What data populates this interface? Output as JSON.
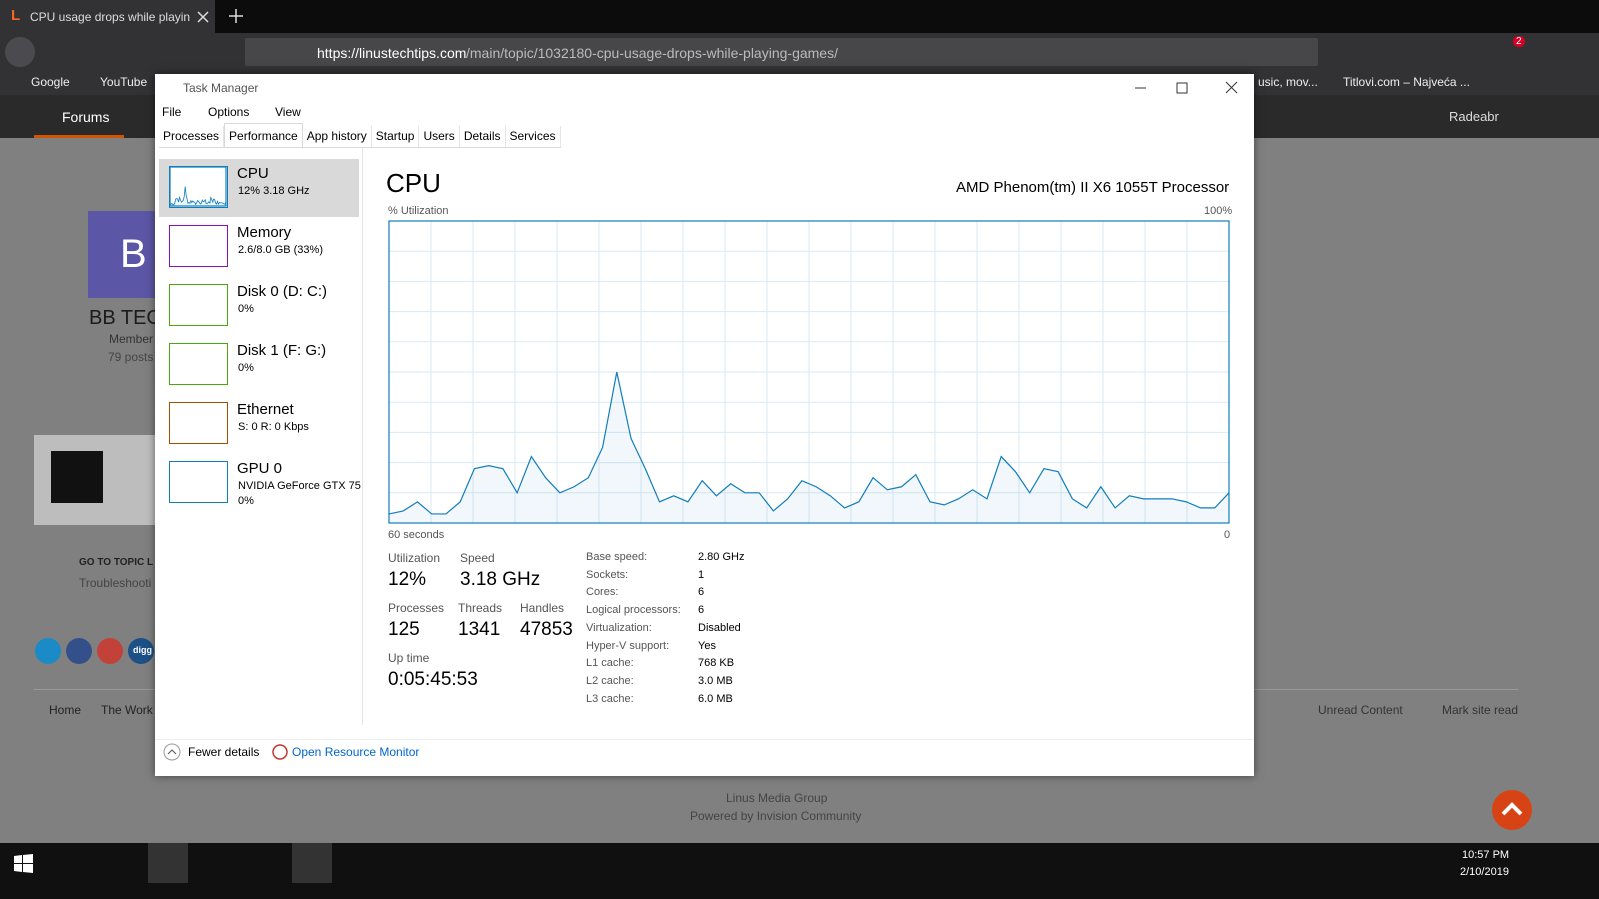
{
  "browser": {
    "tab_title": "CPU usage drops while playing",
    "url_domain": "https://linustechtips.com",
    "url_path": "/main/topic/1032180-cpu-usage-drops-while-playing-games/",
    "extension_badge": "2",
    "bookmarks": [
      "Google",
      "YouTube"
    ],
    "bookmarks_right": [
      "usic, mov...",
      "Titlovi.com – Najveća ..."
    ]
  },
  "site": {
    "nav": "Forums",
    "user": "Radeabr",
    "avatar_letter": "B",
    "author": "BB TEC",
    "role": "Member",
    "posts": "79 posts",
    "go_to_topic": "GO TO TOPIC L",
    "topic_category": "Troubleshooti",
    "social_last": "digg",
    "breadcrumbs": [
      "Home",
      "The Work"
    ],
    "unread": "Unread Content",
    "mark_read": "Mark site read",
    "footer": [
      "Linus Media Group",
      "Powered by Invision Community"
    ]
  },
  "task_manager": {
    "title": "Task Manager",
    "menu": [
      "File",
      "Options",
      "View"
    ],
    "tabs": [
      "Processes",
      "Performance",
      "App history",
      "Startup",
      "Users",
      "Details",
      "Services"
    ],
    "sidebar": [
      {
        "name": "CPU",
        "details": [
          "12% 3.18 GHz"
        ],
        "color": "#117dbb"
      },
      {
        "name": "Memory",
        "details": [
          "2.6/8.0 GB (33%)"
        ],
        "color": "#8b12ae"
      },
      {
        "name": "Disk 0 (D: C:)",
        "details": [
          "0%"
        ],
        "color": "#4da60c"
      },
      {
        "name": "Disk 1 (F: G:)",
        "details": [
          "0%"
        ],
        "color": "#4da60c"
      },
      {
        "name": "Ethernet",
        "details": [
          "S: 0 R: 0 Kbps"
        ],
        "color": "#a74f01"
      },
      {
        "name": "GPU 0",
        "details": [
          "NVIDIA GeForce GTX 75",
          "0%"
        ],
        "color": "#117dbb"
      }
    ],
    "heading": "CPU",
    "processor": "AMD Phenom(tm) II X6 1055T Processor",
    "stats": [
      {
        "label": "Utilization",
        "value": "12%"
      },
      {
        "label": "Speed",
        "value": "3.18 GHz"
      },
      {
        "label": "Processes",
        "value": "125"
      },
      {
        "label": "Threads",
        "value": "1341"
      },
      {
        "label": "Handles",
        "value": "47853"
      },
      {
        "label": "Up time",
        "value": "0:05:45:53"
      }
    ],
    "specs": [
      [
        "Base speed:",
        "2.80 GHz"
      ],
      [
        "Sockets:",
        "1"
      ],
      [
        "Cores:",
        "6"
      ],
      [
        "Logical processors:",
        "6"
      ],
      [
        "Virtualization:",
        "Disabled"
      ],
      [
        "Hyper-V support:",
        "Yes"
      ],
      [
        "L1 cache:",
        "768 KB"
      ],
      [
        "L2 cache:",
        "3.0 MB"
      ],
      [
        "L3 cache:",
        "6.0 MB"
      ]
    ],
    "fewer_details": "Fewer details",
    "resource_monitor": "Open Resource Monitor"
  },
  "chart_data": {
    "type": "line",
    "y_label": "% Utilization",
    "y_max_label": "100%",
    "x_start_label": "60 seconds",
    "x_end_label": "0",
    "values": [
      3,
      4,
      7,
      3,
      3,
      7,
      18,
      19,
      18,
      10,
      22,
      15,
      10,
      12,
      15,
      25,
      50,
      28,
      18,
      7,
      9,
      7,
      14,
      9,
      13,
      10,
      10,
      4,
      8,
      14,
      12,
      9,
      5,
      7,
      15,
      11,
      12,
      16,
      7,
      6,
      8,
      11,
      8,
      22,
      17,
      10,
      18,
      17,
      8,
      5,
      12,
      5,
      9,
      8,
      8,
      8,
      7,
      5,
      5,
      10
    ],
    "ylim": [
      0,
      100
    ],
    "color": "#117dbb",
    "grid": true
  },
  "taskbar": {
    "time": "10:57 PM",
    "date": "2/10/2019"
  }
}
